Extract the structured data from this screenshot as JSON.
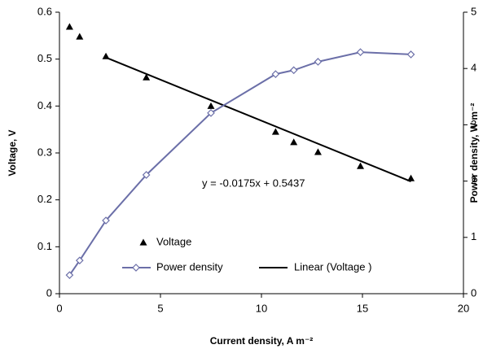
{
  "chart_data": {
    "type": "scatter",
    "xlabel": "Current density, A m⁻²",
    "ylabel": "Voltage, V",
    "y2label": "Power density, W m⁻²",
    "x": [
      0.5,
      1.0,
      2.3,
      4.3,
      7.5,
      10.7,
      11.6,
      12.8,
      14.9,
      17.4
    ],
    "series": [
      {
        "name": "Voltage",
        "color": "#000000",
        "marker": "triangle",
        "values": [
          0.569,
          0.548,
          0.506,
          0.461,
          0.4,
          0.345,
          0.323,
          0.302,
          0.272,
          0.246
        ]
      },
      {
        "name": "Power density",
        "color": "#6b6fa8",
        "marker": "diamond",
        "axis": "y2",
        "values": [
          0.33,
          0.59,
          1.3,
          2.11,
          3.21,
          3.9,
          3.97,
          4.12,
          4.29,
          4.25
        ]
      }
    ],
    "trendline": {
      "name": "Linear (Voltage )",
      "equation": "y = -0.0175x + 0.5437",
      "slope": -0.0175,
      "intercept": 0.5437,
      "color": "#000000"
    },
    "xlim": [
      0,
      20
    ],
    "xticks": [
      0,
      5,
      10,
      15,
      20
    ],
    "ylim": [
      0,
      0.6
    ],
    "yticks": [
      0,
      0.1,
      0.2,
      0.3,
      0.4,
      0.5,
      0.6
    ],
    "y2lim": [
      0,
      5
    ],
    "y2ticks": [
      0,
      1,
      2,
      3,
      4,
      5
    ],
    "grid": false,
    "legend": "lower left"
  }
}
